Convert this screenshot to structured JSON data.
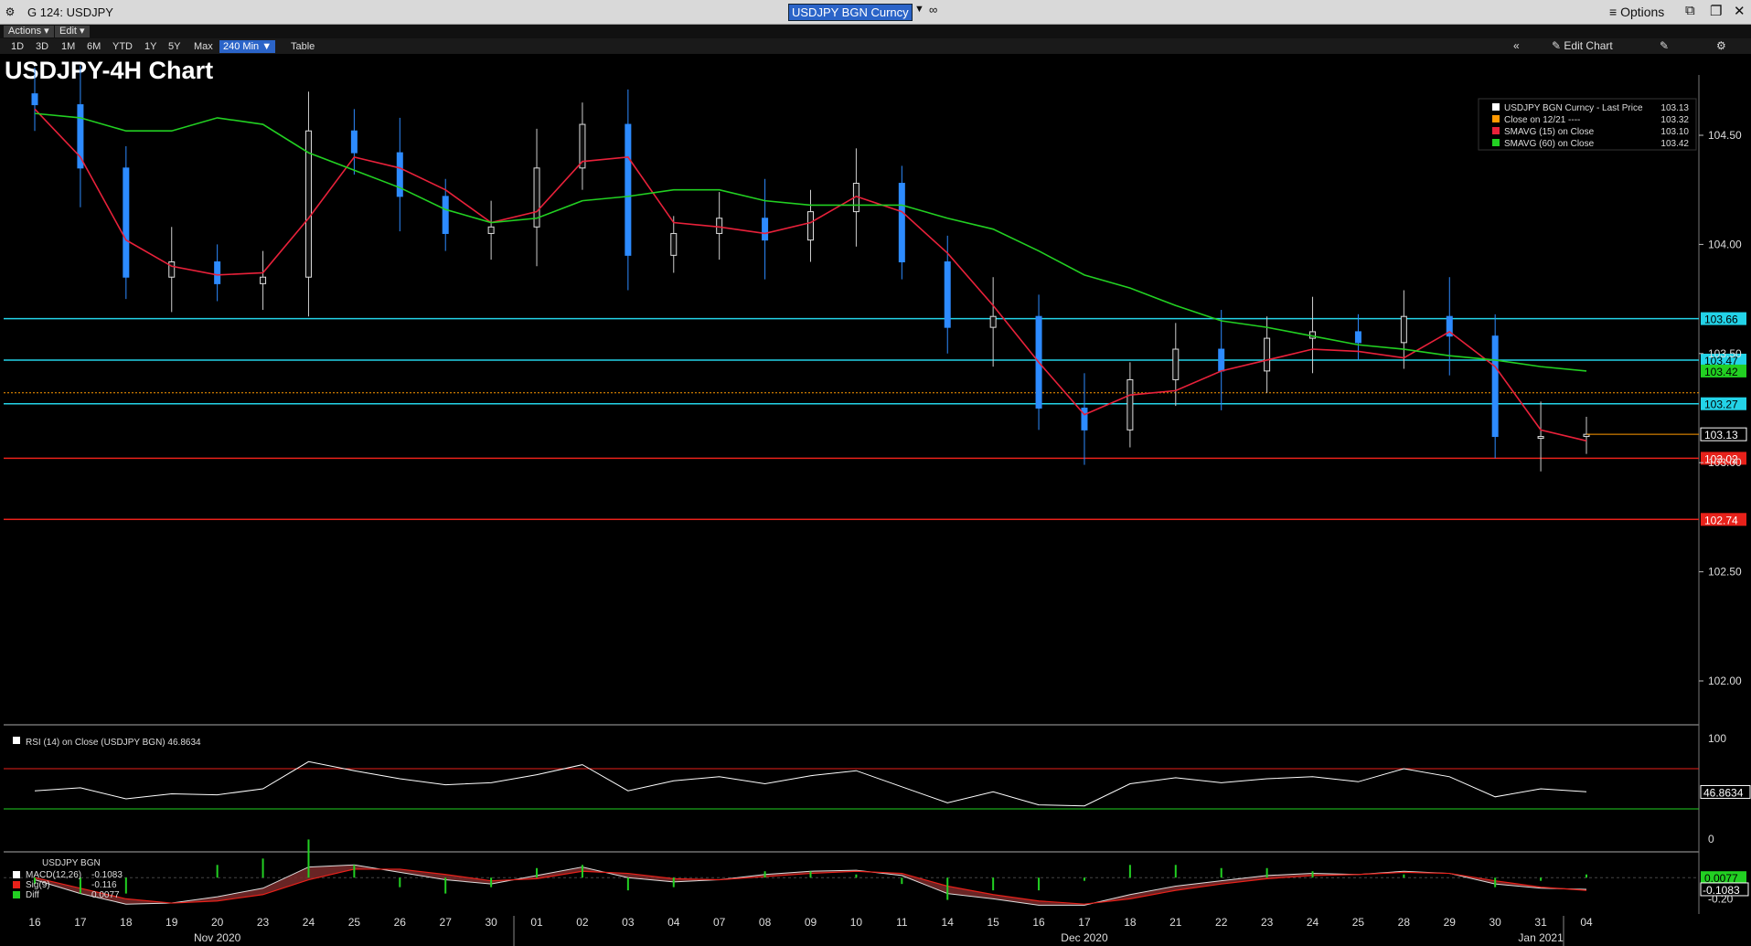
{
  "window": {
    "title": "G 124: USDJPY",
    "security": "USDJPY BGN Curncy",
    "options_label": "Options",
    "icons": [
      "settings-icon",
      "dropdown-icon",
      "link-icon",
      "menu-icon",
      "popout-icon",
      "restore-icon",
      "close-icon"
    ]
  },
  "menus": {
    "actions": "Actions ▾",
    "edit": "Edit ▾"
  },
  "toolbar": {
    "ranges": [
      "1D",
      "3D",
      "1M",
      "6M",
      "YTD",
      "1Y",
      "5Y",
      "Max"
    ],
    "active_range": "240 Min ▼",
    "table_label": "Table",
    "edit_chart": "Edit Chart",
    "collapse_label": "«"
  },
  "chart_data": {
    "type": "line",
    "title": "USDJPY-4H Chart",
    "panes": [
      {
        "name": "price",
        "type": "candlestick",
        "ylim": [
          101.75,
          104.8
        ],
        "yticks": [
          "104.50",
          "104.00",
          "103.50",
          "103.00",
          "102.50",
          "102.00"
        ],
        "legend": [
          {
            "label": "USDJPY BGN Curncy - Last Price",
            "value": "103.13",
            "color": "#ffffff"
          },
          {
            "label": "Close on 12/21 ----",
            "value": "103.32",
            "color": "#ff9900"
          },
          {
            "label": "SMAVG (15)  on Close",
            "value": "103.10",
            "color": "#e8213a"
          },
          {
            "label": "SMAVG (60)  on Close",
            "value": "103.42",
            "color": "#22d022"
          }
        ],
        "series": [
          {
            "name": "USDJPY BGN Curncy - Last Price",
            "color": "#ffffff",
            "x": [
              "16",
              "17",
              "18",
              "19",
              "20",
              "23",
              "24",
              "25",
              "26",
              "27",
              "30",
              "01",
              "02",
              "03",
              "04",
              "07",
              "08",
              "09",
              "10",
              "11",
              "14",
              "15",
              "16",
              "17",
              "18",
              "21",
              "22",
              "23",
              "24",
              "25",
              "28",
              "29",
              "30",
              "31",
              "04"
            ],
            "values": [
              104.64,
              104.35,
              103.85,
              103.92,
              103.82,
              103.85,
              104.52,
              104.42,
              104.22,
              104.05,
              104.08,
              104.35,
              104.55,
              103.95,
              104.05,
              104.12,
              104.02,
              104.15,
              104.28,
              103.92,
              103.62,
              103.67,
              103.25,
              103.15,
              103.38,
              103.52,
              103.42,
              103.57,
              103.6,
              103.55,
              103.67,
              103.58,
              103.12,
              103.12,
              103.13
            ]
          },
          {
            "name": "SMAVG (15)  on Close",
            "color": "#e8213a",
            "values": [
              104.62,
              104.4,
              104.02,
              103.9,
              103.86,
              103.87,
              104.12,
              104.4,
              104.35,
              104.25,
              104.1,
              104.15,
              104.38,
              104.4,
              104.1,
              104.08,
              104.05,
              104.1,
              104.22,
              104.15,
              103.96,
              103.72,
              103.46,
              103.22,
              103.31,
              103.33,
              103.42,
              103.47,
              103.52,
              103.51,
              103.48,
              103.6,
              103.44,
              103.15,
              103.1
            ]
          },
          {
            "name": "SMAVG (60)  on Close",
            "color": "#22d022",
            "values": [
              104.6,
              104.58,
              104.52,
              104.52,
              104.58,
              104.55,
              104.42,
              104.34,
              104.26,
              104.16,
              104.1,
              104.12,
              104.2,
              104.22,
              104.25,
              104.25,
              104.2,
              104.18,
              104.18,
              104.18,
              104.12,
              104.07,
              103.97,
              103.86,
              103.8,
              103.72,
              103.65,
              103.62,
              103.58,
              103.54,
              103.52,
              103.49,
              103.47,
              103.44,
              103.42
            ]
          }
        ],
        "levels": [
          {
            "value": 103.66,
            "label": "103.66",
            "color": "#23d3e8"
          },
          {
            "value": 103.47,
            "label": "103.47",
            "color": "#23d3e8"
          },
          {
            "value": 103.27,
            "label": "103.27",
            "color": "#23d3e8"
          },
          {
            "value": 103.02,
            "label": "103.02",
            "color": "#e8211a"
          },
          {
            "value": 102.74,
            "label": "102.74",
            "color": "#e8211a"
          }
        ],
        "right_tags": [
          {
            "value": 103.42,
            "label": "103.42",
            "color": "#22d022"
          },
          {
            "value": 103.13,
            "label": "103.13",
            "color": "#ffffff"
          }
        ]
      },
      {
        "name": "rsi",
        "type": "line",
        "legend": "RSI (14)  on Close (USDJPY BGN) 46.8634",
        "ylim": [
          0,
          100
        ],
        "yticks": [
          "100",
          "0"
        ],
        "levels": [
          70,
          30
        ],
        "last_label": "46.8634",
        "values": [
          48,
          51,
          40,
          45,
          44,
          50,
          77,
          68,
          60,
          54,
          56,
          64,
          74,
          48,
          58,
          62,
          55,
          63,
          68,
          52,
          36,
          47,
          34,
          33,
          55,
          61,
          56,
          60,
          62,
          57,
          70,
          62,
          42,
          50,
          47
        ]
      },
      {
        "name": "macd",
        "type": "area",
        "title": "USDJPY BGN",
        "legend": [
          {
            "label": "MACD(12,26)",
            "value": "-0.1083",
            "color": "#ffffff"
          },
          {
            "label": "Sig(9)",
            "value": "-0.116",
            "color": "#e8211a"
          },
          {
            "label": "Diff",
            "value": "0.0077",
            "color": "#22d022"
          }
        ],
        "ylim": [
          -0.3,
          0.2
        ],
        "yticks": [
          "-0.20"
        ],
        "tags": [
          {
            "label": "0.0077",
            "color": "#22d022"
          },
          {
            "label": "-0.1083",
            "color": "#ffffff"
          }
        ],
        "macd": [
          -0.02,
          -0.15,
          -0.25,
          -0.24,
          -0.18,
          -0.1,
          0.1,
          0.12,
          0.05,
          -0.02,
          -0.06,
          0.02,
          0.1,
          0.0,
          -0.04,
          -0.02,
          0.03,
          0.06,
          0.07,
          0.02,
          -0.15,
          -0.2,
          -0.26,
          -0.26,
          -0.16,
          -0.08,
          -0.03,
          0.02,
          0.04,
          0.03,
          0.06,
          0.04,
          -0.06,
          -0.1,
          -0.11
        ],
        "signal": [
          0.0,
          -0.1,
          -0.2,
          -0.24,
          -0.22,
          -0.16,
          -0.02,
          0.08,
          0.08,
          0.03,
          -0.03,
          -0.01,
          0.06,
          0.04,
          -0.01,
          -0.02,
          0.01,
          0.04,
          0.06,
          0.04,
          -0.08,
          -0.16,
          -0.22,
          -0.25,
          -0.2,
          -0.12,
          -0.06,
          -0.01,
          0.02,
          0.03,
          0.05,
          0.04,
          -0.03,
          -0.09,
          -0.12
        ]
      }
    ],
    "x_labels": [
      "16",
      "17",
      "18",
      "19",
      "20",
      "23",
      "24",
      "25",
      "26",
      "27",
      "30",
      "01",
      "02",
      "03",
      "04",
      "07",
      "08",
      "09",
      "10",
      "11",
      "14",
      "15",
      "16",
      "17",
      "18",
      "21",
      "22",
      "23",
      "24",
      "25",
      "28",
      "29",
      "30",
      "31",
      "04"
    ],
    "months": [
      "Nov 2020",
      "Dec 2020",
      "Jan 2021"
    ],
    "grid": false
  }
}
